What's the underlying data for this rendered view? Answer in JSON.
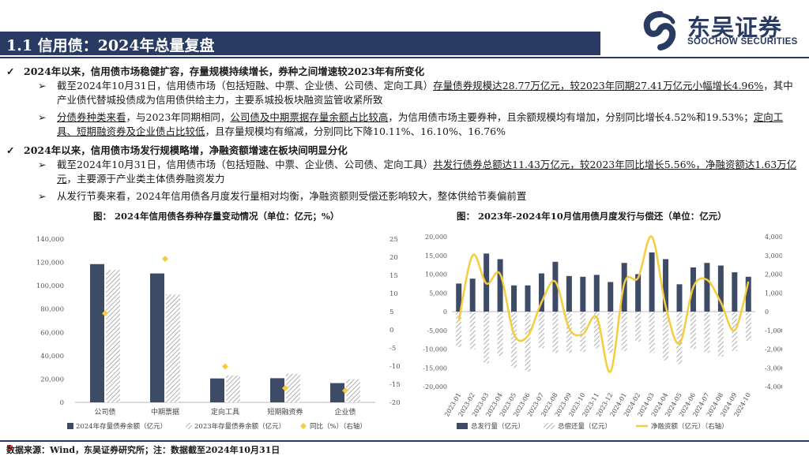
{
  "header": {
    "title": "1.1 信用债：2024年总量复盘",
    "logo_cn": "东吴证券",
    "logo_en": "SOOCHOW SECURITIES"
  },
  "bullets": {
    "b1": "2024年以来，信用债市场稳健扩容，存量规模持续增长，券种之间增速较2023年有所变化",
    "b1_1a": "截至2024年10月31日，信用债市场（包括短融、中票、企业债、公司债、定向工具）",
    "b1_1b": "存量债券规模达28.77万亿元，较2023年同期27.41万亿元小幅增长4.96%",
    "b1_1c": "，其中产业债代替城投债成为信用债供给主力，主要系城投板块融资监管收紧所致",
    "b1_2a": "分债券种类来看",
    "b1_2b": "，与2023年同期相同，",
    "b1_2c": "公司债及中期票据存量余额占比较高",
    "b1_2d": "，为信用债市场主要券种，且余额规模均有增加，分别同比增长4.52%和19.53%；",
    "b1_2e": "定向工具、短期融资券及企业债占比较低",
    "b1_2f": "，且存量规模均有缩减，分别同比下降10.11%、16.10%、16.76%",
    "b2": "2024年以来，信用债市场发行规模略增，净融资额增速在板块间明显分化",
    "b2_1a": "截至2024年10月31日，信用债市场（包括短融、中票、企业债、公司债、定向工具）",
    "b2_1b": "共发行债券总额达11.43万亿元，较2023年同比增长5.56%，净融资额达1.63万亿元",
    "b2_1c": "，主要源于产业类主体债券融资发力",
    "b2_2": "从发行节奏来看，2024年信用债各月度发行量相对均衡，净融资额则受偿还影响较大，整体供给节奏偏前置"
  },
  "colors": {
    "navy": "#2a3b63",
    "bar_dark": "#3d4b66",
    "gold": "#f5cc3d",
    "hatch": "#9a9a9a"
  },
  "chart1_title": "图：  2024年信用债各券种存量变动情况（单位：亿元；%）",
  "chart2_title": "图：  2023年-2024年10月信用债月度发行与偿还（单位：亿元）",
  "chart_data": [
    {
      "type": "bar",
      "categories": [
        "公司债",
        "中期票据",
        "定向工具",
        "短期融资券",
        "企业债"
      ],
      "series": [
        {
          "name": "2024年存量债券余额（亿元）",
          "values": [
            118500,
            110500,
            20500,
            20700,
            16500
          ]
        },
        {
          "name": "2023年存量债券余额（亿元）",
          "values": [
            113500,
            92500,
            23000,
            24500,
            19800
          ]
        },
        {
          "name": "同比（%）（右轴）",
          "values": [
            4.52,
            19.53,
            -10.11,
            -16.1,
            -16.76
          ]
        }
      ],
      "y_ticks": [
        "0",
        "20,000",
        "40,000",
        "60,000",
        "80,000",
        "100,000",
        "120,000",
        "140,000"
      ],
      "y2_ticks": [
        "-20",
        "-15",
        "-10",
        "-5",
        "0",
        "5",
        "10",
        "15",
        "20",
        "25"
      ],
      "ylim": [
        0,
        140000
      ],
      "y2lim": [
        -20,
        25
      ],
      "grid": false,
      "legend": "bottom"
    },
    {
      "type": "bar",
      "categories": [
        "2023-01",
        "2023-02",
        "2023-03",
        "2023-04",
        "2023-05",
        "2023-06",
        "2023-07",
        "2023-08",
        "2023-09",
        "2023-10",
        "2023-11",
        "2023-12",
        "2024-01",
        "2024-02",
        "2024-03",
        "2024-04",
        "2024-05",
        "2024-06",
        "2024-07",
        "2024-08",
        "2024-09",
        "2024-10"
      ],
      "series": [
        {
          "name": "总发行量（亿元）",
          "values": [
            7500,
            8800,
            15500,
            14000,
            7000,
            7000,
            10200,
            13300,
            9500,
            9300,
            9800,
            7900,
            13000,
            10000,
            15800,
            14000,
            7300,
            11800,
            13000,
            12300,
            10500,
            9300
          ]
        },
        {
          "name": "总偿还量（亿元）",
          "values": [
            -9500,
            -10000,
            -13800,
            -11800,
            -15000,
            -16000,
            -9800,
            -11000,
            -11000,
            -10800,
            -9800,
            -11000,
            -10500,
            -8000,
            -11000,
            -13000,
            -14000,
            -10000,
            -11000,
            -12000,
            -10500,
            -7800
          ]
        },
        {
          "name": "净融资额（亿元）（右轴）",
          "values": [
            -500,
            3000,
            1500,
            2000,
            -1200,
            -1300,
            500,
            1600,
            -900,
            -1200,
            -300,
            -3200,
            1500,
            1800,
            4000,
            300,
            -1700,
            1300,
            1700,
            500,
            -1000,
            1600
          ]
        }
      ],
      "y_ticks": [
        "-20,000",
        "-15,000",
        "-10,000",
        "-5,000",
        "0",
        "5,000",
        "10,000",
        "15,000",
        "20,000"
      ],
      "y2_ticks": [
        "-4,000",
        "-3,000",
        "-2,000",
        "-1,000",
        "0",
        "1,000",
        "2,000",
        "3,000",
        "4,000"
      ],
      "ylim": [
        -20000,
        20000
      ],
      "y2lim": [
        -4000,
        4000
      ],
      "grid": false,
      "legend": "bottom"
    }
  ],
  "footer": {
    "source": "数据来源：Wind，东吴证券研究所；注：数据截至2024年10月31日",
    "page": "5"
  }
}
